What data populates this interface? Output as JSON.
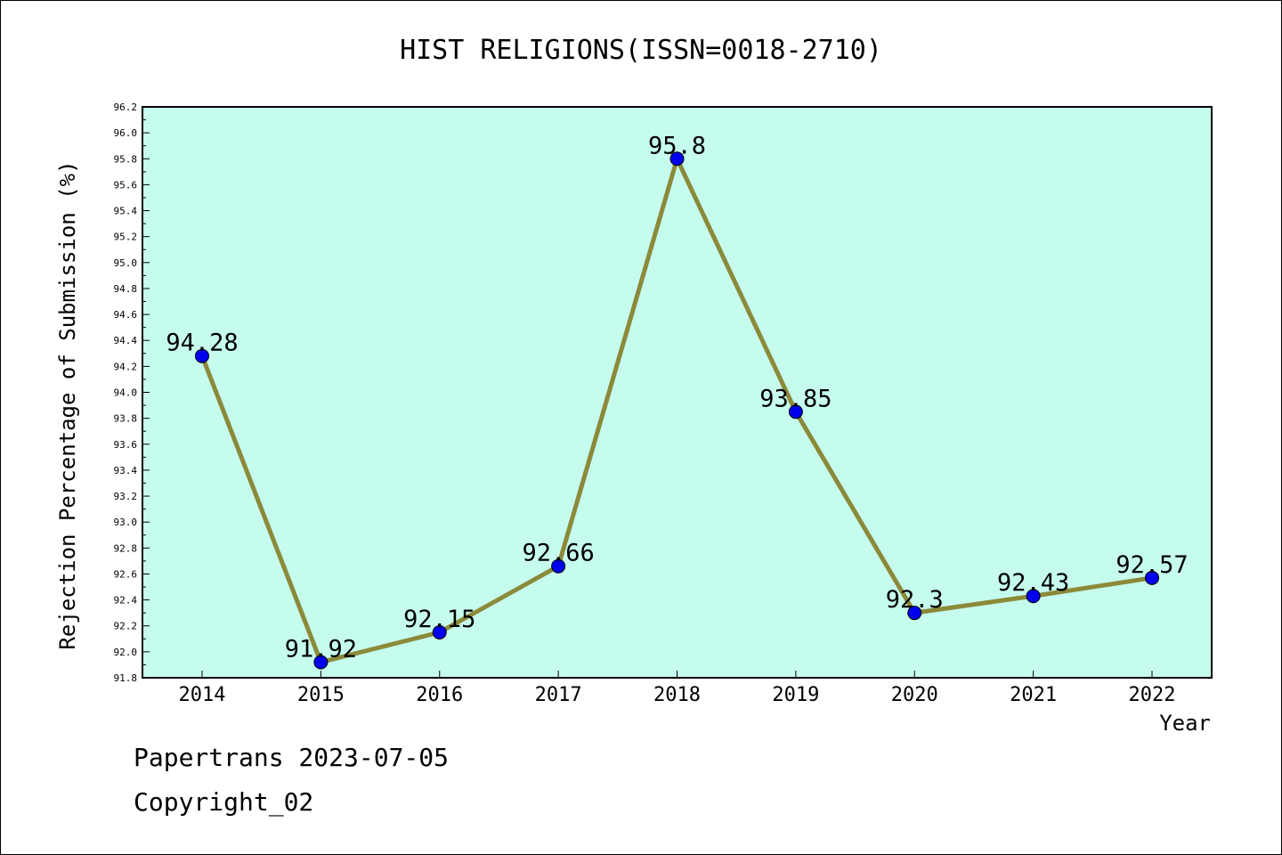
{
  "chart_data": {
    "type": "line",
    "title": "HIST RELIGIONS(ISSN=0018-2710)",
    "xlabel": "Year",
    "ylabel": "Rejection Percentage of Submission (%)",
    "categories": [
      "2014",
      "2015",
      "2016",
      "2017",
      "2018",
      "2019",
      "2020",
      "2021",
      "2022"
    ],
    "series": [
      {
        "values": [
          94.28,
          91.92,
          92.15,
          92.66,
          95.8,
          93.85,
          92.3,
          92.43,
          92.57
        ]
      }
    ],
    "data_labels": [
      "94.28",
      "91.92",
      "92.15",
      "92.66",
      "95.8",
      "93.85",
      "92.3",
      "92.43",
      "92.57"
    ],
    "ylim": [
      91.8,
      96.2
    ],
    "yticks": [
      "91.8",
      "92.0",
      "92.2",
      "92.4",
      "92.6",
      "92.8",
      "93.0",
      "93.2",
      "93.4",
      "93.6",
      "93.8",
      "94.0",
      "94.2",
      "94.4",
      "94.6",
      "94.8",
      "95.0",
      "95.2",
      "95.4",
      "95.6",
      "95.8",
      "96.0",
      "96.2"
    ],
    "grid": false,
    "colors": {
      "plot_background": "#c6fcee",
      "line": "#8b8a3a",
      "marker": "#0000ee"
    }
  },
  "footer": {
    "line1": "Papertrans 2023-07-05",
    "line2": "Copyright_02"
  }
}
